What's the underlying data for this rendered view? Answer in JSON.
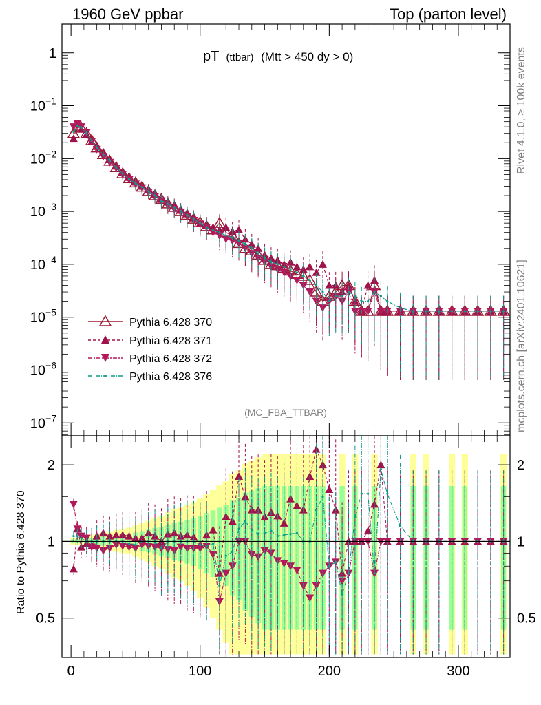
{
  "header": {
    "left": "1960 GeV ppbar",
    "right": "Top (parton level)"
  },
  "side_labels": {
    "rivet": "Rivet 4.1.0, ≥ 100k events",
    "mcplots": "mcplots.cern.ch [arXiv:2401.10621]"
  },
  "colors": {
    "s370": "#9b1b30",
    "s371": "#a0124a",
    "s372": "#b2185a",
    "s376": "#0d9a8c",
    "band_yellow": "#ffff99",
    "band_green": "#99ff99"
  },
  "chart_data": [
    {
      "type": "scatter",
      "panel": "main",
      "title": "pT",
      "title_small": "(ttbar)",
      "title_rest": "(Mtt > 450 dy > 0)",
      "watermark": "(MC_FBA_TTBAR)",
      "xlabel": "",
      "ylabel": "",
      "yscale": "log",
      "xlim": [
        -7,
        340
      ],
      "ylim": [
        5.7e-08,
        3.5
      ],
      "ytick_labels": [
        "1",
        "10^-1",
        "10^-2",
        "10^-3",
        "10^-4",
        "10^-5",
        "10^-6",
        "10^-7"
      ],
      "legend": [
        "Pythia 6.428 370",
        "Pythia 6.428 371",
        "Pythia 6.428 372",
        "Pythia 6.428 376"
      ],
      "legend_location": "lower-left",
      "x": [
        2,
        5,
        8,
        12,
        16,
        20,
        25,
        30,
        35,
        40,
        45,
        50,
        55,
        60,
        65,
        70,
        75,
        80,
        85,
        90,
        95,
        100,
        105,
        110,
        115,
        120,
        125,
        130,
        135,
        140,
        145,
        150,
        155,
        160,
        165,
        170,
        175,
        180,
        185,
        190,
        195,
        200,
        205,
        210,
        215,
        220,
        225,
        230,
        235,
        240,
        245,
        255,
        265,
        275,
        285,
        295,
        305,
        315,
        325,
        335
      ],
      "series": [
        {
          "name": "Pythia 6.428 370",
          "marker": "open-triangle-up",
          "values": [
            0.03,
            0.04,
            0.038,
            0.03,
            0.022,
            0.016,
            0.012,
            0.009,
            0.0068,
            0.0052,
            0.0042,
            0.0035,
            0.0029,
            0.0024,
            0.002,
            0.0017,
            0.0014,
            0.0012,
            0.001,
            0.00085,
            0.00072,
            0.00062,
            0.00052,
            0.00045,
            0.0006,
            0.0004,
            0.00035,
            0.00025,
            0.0002,
            0.00018,
            0.00015,
            0.00012,
            0.0001,
            9.5e-05,
            8.5e-05,
            7.5e-05,
            6.5e-05,
            6e-05,
            5e-05,
            3e-05,
            2e-05,
            2.5e-05,
            3e-05,
            4e-05,
            4e-05,
            2e-05,
            1.3e-05,
            1.3e-05,
            4e-05,
            1.3e-05,
            1.3e-05,
            1.3e-05,
            1.3e-05,
            1.3e-05,
            1.3e-05,
            1.3e-05,
            1.3e-05,
            1.3e-05,
            1.3e-05,
            1.3e-05
          ]
        },
        {
          "name": "Pythia 6.428 371",
          "marker": "filled-triangle-up",
          "values": [
            0.024,
            0.045,
            0.036,
            0.029,
            0.021,
            0.017,
            0.013,
            0.0095,
            0.0072,
            0.0055,
            0.0044,
            0.0036,
            0.003,
            0.0026,
            0.0021,
            0.0017,
            0.0015,
            0.0013,
            0.00105,
            0.0009,
            0.00075,
            0.0006,
            0.00055,
            0.0005,
            0.00045,
            0.0005,
            0.00042,
            0.00045,
            0.0003,
            0.00024,
            0.0002,
            0.00015,
            0.00013,
            0.00012,
            0.0001,
            0.00011,
            9e-05,
            8e-05,
            9e-05,
            7e-05,
            0.0001,
            4e-05,
            4e-05,
            3e-05,
            4e-05,
            2e-05,
            1.3e-05,
            4e-05,
            5e-05,
            1.3e-05,
            1.3e-05,
            1.3e-05,
            1.3e-05,
            1.3e-05,
            1.3e-05,
            1.3e-05,
            1.3e-05,
            1.3e-05,
            1.3e-05,
            1.3e-05
          ]
        },
        {
          "name": "Pythia 6.428 372",
          "marker": "filled-triangle-down",
          "values": [
            0.04,
            0.046,
            0.04,
            0.031,
            0.021,
            0.015,
            0.011,
            0.0085,
            0.0066,
            0.005,
            0.004,
            0.0033,
            0.0028,
            0.0023,
            0.0019,
            0.0016,
            0.0013,
            0.0011,
            0.00095,
            0.0008,
            0.00068,
            0.00058,
            0.0005,
            0.0004,
            0.00035,
            0.0003,
            0.00028,
            0.00025,
            0.0002,
            0.00016,
            0.00013,
            0.00011,
            9e-05,
            8e-05,
            7e-05,
            6e-05,
            5e-05,
            4e-05,
            3e-05,
            2e-05,
            1.5e-05,
            2e-05,
            2.5e-05,
            2e-05,
            3e-05,
            1.3e-05,
            1.3e-05,
            1.3e-05,
            3e-05,
            1.3e-05,
            1.3e-05,
            1.3e-05,
            1.3e-05,
            1.3e-05,
            1.3e-05,
            1.3e-05,
            1.3e-05,
            1.3e-05,
            1.3e-05,
            1.3e-05
          ]
        },
        {
          "name": "Pythia 6.428 376",
          "marker": "small-dot",
          "values": [
            0.032,
            0.042,
            0.039,
            0.03,
            0.022,
            0.016,
            0.012,
            0.009,
            0.0068,
            0.0052,
            0.0041,
            0.0034,
            0.0029,
            0.0024,
            0.002,
            0.0016,
            0.0014,
            0.0012,
            0.001,
            0.00085,
            0.00072,
            0.0006,
            0.0005,
            0.00044,
            0.0004,
            0.00035,
            0.00032,
            0.00028,
            0.00024,
            0.0002,
            0.00016,
            0.00013,
            0.00011,
            0.0001,
            9e-05,
            8e-05,
            7e-05,
            6e-05,
            5e-05,
            4e-05,
            3e-05,
            2e-05,
            2.5e-05,
            2.5e-05,
            3e-05,
            2.5e-05,
            2e-05,
            2e-05,
            3e-05,
            2.5e-05,
            2e-05,
            1.5e-05,
            1.3e-05,
            1.3e-05,
            1.3e-05,
            1.3e-05,
            1.3e-05,
            1.3e-05,
            1.3e-05,
            1.3e-05
          ]
        }
      ]
    },
    {
      "type": "scatter",
      "panel": "ratio",
      "ylabel": "Ratio to Pythia 6.428 370",
      "xlabel": "",
      "xlim": [
        -7,
        340
      ],
      "ylim": [
        0.35,
        2.6
      ],
      "yscale": "log",
      "ytick_labels": [
        "0.5",
        "1",
        "2"
      ],
      "xtick_labels": [
        "0",
        "100",
        "200",
        "300"
      ],
      "reference_line": 1,
      "x": [
        2,
        5,
        8,
        12,
        16,
        20,
        25,
        30,
        35,
        40,
        45,
        50,
        55,
        60,
        65,
        70,
        75,
        80,
        85,
        90,
        95,
        100,
        105,
        110,
        115,
        120,
        125,
        130,
        135,
        140,
        145,
        150,
        155,
        160,
        165,
        170,
        175,
        180,
        185,
        190,
        195,
        200,
        205,
        210,
        215,
        220,
        225,
        230,
        235,
        240,
        245,
        255,
        265,
        275,
        285,
        295,
        305,
        315,
        325,
        335
      ],
      "band_yellow_halfwidth": [
        0.03,
        0.03,
        0.03,
        0.04,
        0.05,
        0.06,
        0.07,
        0.08,
        0.09,
        0.1,
        0.11,
        0.13,
        0.15,
        0.17,
        0.2,
        0.22,
        0.25,
        0.28,
        0.3,
        0.33,
        0.36,
        0.4,
        0.45,
        0.5,
        0.55,
        0.6,
        0.7,
        0.75,
        0.85,
        0.9,
        0.95,
        1.0,
        1.0,
        1.0,
        1.0,
        1.0,
        1.0,
        1.0,
        1.0,
        1.0,
        1.0,
        0.0,
        0.0,
        1.0,
        0.0,
        1.0,
        0.0,
        0.0,
        1.0,
        0.0,
        0.0,
        0.0,
        1.0,
        1.0,
        0.0,
        1.0,
        1.0,
        0.0,
        0.0,
        1.0
      ],
      "series": [
        {
          "name": "Pythia 6.428 371",
          "values": [
            0.78,
            1.12,
            0.95,
            0.98,
            0.96,
            1.05,
            1.08,
            1.05,
            1.06,
            1.06,
            1.05,
            1.03,
            1.03,
            1.08,
            1.05,
            1.0,
            1.07,
            1.08,
            1.05,
            1.06,
            1.04,
            0.97,
            1.06,
            1.11,
            0.75,
            1.25,
            1.2,
            1.8,
            1.5,
            1.33,
            1.33,
            1.25,
            1.3,
            1.26,
            1.18,
            1.47,
            1.38,
            1.33,
            1.8,
            2.3,
            2.0,
            1.6,
            1.33,
            0.75,
            1.0,
            1.0,
            1.0,
            1.1,
            1.4,
            2.0,
            1.0,
            1.0,
            1.0,
            1.0,
            1.0,
            1.0,
            1.0,
            1.0,
            1.0,
            1.0
          ]
        },
        {
          "name": "Pythia 6.428 372",
          "values": [
            1.4,
            1.12,
            1.05,
            1.03,
            0.95,
            0.94,
            0.92,
            0.94,
            0.97,
            0.96,
            0.95,
            0.94,
            0.97,
            0.96,
            0.95,
            0.94,
            0.93,
            0.92,
            0.95,
            0.94,
            0.94,
            0.94,
            0.96,
            0.89,
            0.58,
            0.75,
            0.8,
            1.0,
            1.0,
            0.89,
            0.87,
            0.92,
            0.9,
            0.84,
            0.82,
            0.8,
            0.77,
            0.67,
            0.6,
            0.67,
            0.75,
            0.8,
            0.83,
            0.7,
            0.75,
            1.0,
            1.0,
            1.0,
            0.75,
            1.0,
            1.0,
            1.0,
            1.0,
            1.0,
            1.0,
            1.0,
            1.0,
            1.0,
            1.0,
            1.0
          ]
        },
        {
          "name": "Pythia 6.428 376",
          "values": [
            1.05,
            1.05,
            1.03,
            1.0,
            1.0,
            1.0,
            1.0,
            1.0,
            1.0,
            1.0,
            0.98,
            0.97,
            1.0,
            1.0,
            1.0,
            0.94,
            1.0,
            1.0,
            1.0,
            1.0,
            1.0,
            0.97,
            0.96,
            0.98,
            0.67,
            0.88,
            0.91,
            1.12,
            1.2,
            1.11,
            1.07,
            1.08,
            1.1,
            1.05,
            1.06,
            1.07,
            1.08,
            1.0,
            1.0,
            1.33,
            1.5,
            0.8,
            0.83,
            0.62,
            0.75,
            1.25,
            1.54,
            1.54,
            0.75,
            1.92,
            1.54,
            1.15,
            1.0,
            1.0,
            1.0,
            1.0,
            1.0,
            1.0,
            1.0,
            1.0
          ]
        }
      ]
    }
  ]
}
